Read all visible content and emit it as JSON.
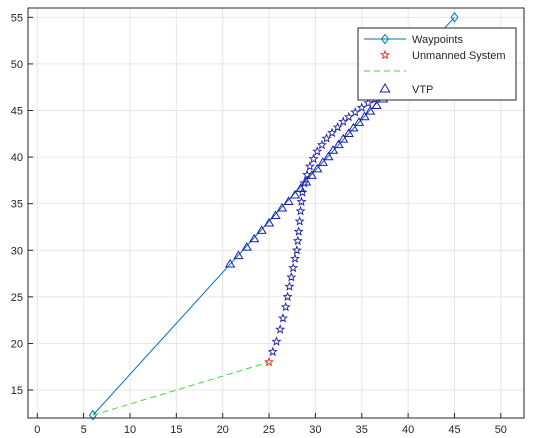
{
  "chart_data": {
    "type": "line",
    "title": "",
    "xlabel": "",
    "ylabel": "",
    "xlim": [
      -1,
      52.5
    ],
    "ylim": [
      12,
      56
    ],
    "xticks": [
      0,
      5,
      10,
      15,
      20,
      25,
      30,
      35,
      40,
      45,
      50
    ],
    "yticks": [
      15,
      20,
      25,
      30,
      35,
      40,
      45,
      50,
      55
    ],
    "grid": true,
    "legend_position": "top-right",
    "colors": {
      "waypoints": "#0072BD",
      "unmanned": "#E0262B",
      "dashed": "#3DDB3D",
      "markers": "#1E1EA6",
      "grid": "#E6E6E6",
      "axes": "#262626"
    },
    "series": [
      {
        "name": "Waypoints",
        "style": "line-diamond",
        "x": [
          6,
          45
        ],
        "y": [
          12.3,
          55
        ]
      },
      {
        "name": "Unmanned System",
        "style": "star",
        "x": [
          25.0,
          25.4,
          25.8,
          26.2,
          26.5,
          26.8,
          27.0,
          27.2,
          27.4,
          27.6,
          27.8,
          28.0,
          28.1,
          28.2,
          28.3,
          28.4,
          28.5,
          28.6,
          28.8,
          29.1,
          29.4,
          29.8,
          30.2,
          30.7,
          31.2,
          31.8,
          32.4,
          33.0,
          33.6,
          34.3,
          35.0,
          35.7,
          36.4,
          37.1,
          37.8,
          38.5
        ],
        "y": [
          18.0,
          19.1,
          20.2,
          21.5,
          22.7,
          23.9,
          25.0,
          26.1,
          27.1,
          28.1,
          29.1,
          30.0,
          31.0,
          32.0,
          33.1,
          34.2,
          35.2,
          36.2,
          37.2,
          38.1,
          39.0,
          39.8,
          40.6,
          41.3,
          42.0,
          42.6,
          43.2,
          43.8,
          44.3,
          44.8,
          45.3,
          45.8,
          46.2,
          46.6,
          47.0,
          47.4
        ]
      },
      {
        "name": "",
        "style": "dashed",
        "x": [
          6,
          25
        ],
        "y": [
          12.3,
          18.0
        ]
      },
      {
        "name": "VTP",
        "style": "triangle",
        "x": [
          20.8,
          21.7,
          22.6,
          23.4,
          24.2,
          25.0,
          25.7,
          26.4,
          27.1,
          27.8,
          28.4,
          29.0,
          29.6,
          30.2,
          30.8,
          31.4,
          31.9,
          32.5,
          33.0,
          33.6,
          34.1,
          34.7,
          35.3,
          35.9,
          36.6,
          37.3,
          38.0,
          38.7
        ],
        "y": [
          28.5,
          29.4,
          30.3,
          31.2,
          32.1,
          32.9,
          33.7,
          34.5,
          35.2,
          35.9,
          36.6,
          37.3,
          38.0,
          38.7,
          39.4,
          40.0,
          40.7,
          41.3,
          41.9,
          42.5,
          43.1,
          43.7,
          44.3,
          44.9,
          45.5,
          46.2,
          46.8,
          47.5
        ]
      }
    ]
  }
}
